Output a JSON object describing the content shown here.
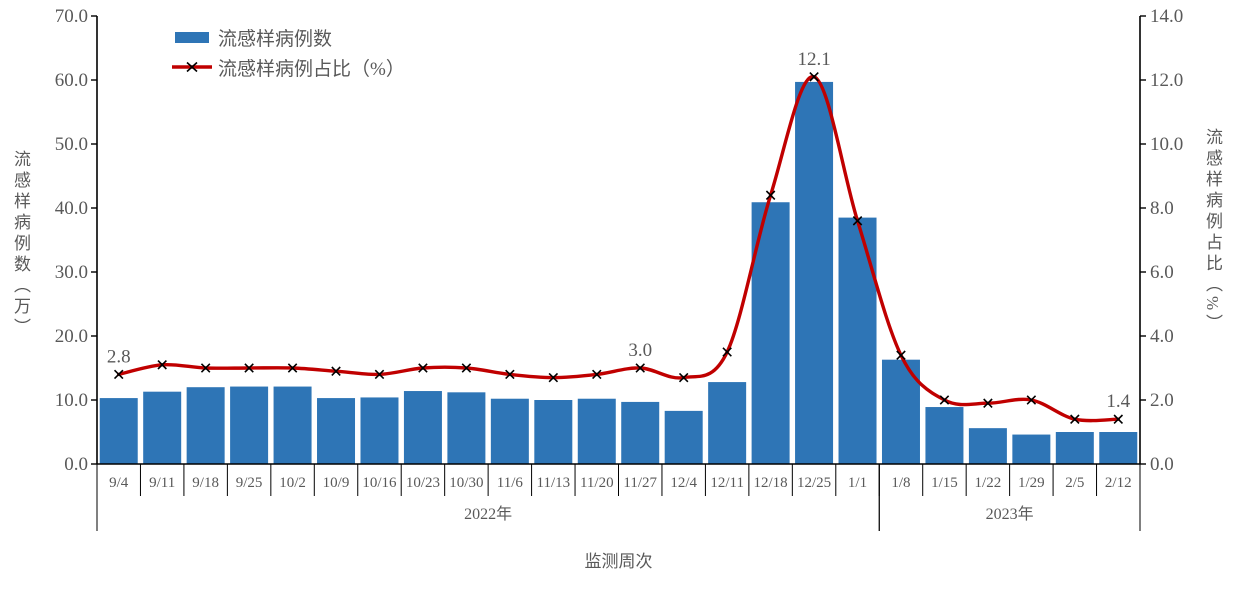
{
  "chart_data": {
    "type": "bar",
    "combo": "bar+line dual axis",
    "title": "",
    "xlabel": "监测周次",
    "ylabel_left": "流感样病例数（万）",
    "ylabel_right": "流感样病例占比（%）",
    "ylim_left": [
      0,
      70
    ],
    "ylim_right": [
      0,
      14
    ],
    "yticks_left": [
      "0.0",
      "10.0",
      "20.0",
      "30.0",
      "40.0",
      "50.0",
      "60.0",
      "70.0"
    ],
    "yticks_right": [
      "0.0",
      "2.0",
      "4.0",
      "6.0",
      "8.0",
      "10.0",
      "12.0",
      "14.0"
    ],
    "categories": [
      "9/4",
      "9/11",
      "9/18",
      "9/25",
      "10/2",
      "10/9",
      "10/16",
      "10/23",
      "10/30",
      "11/6",
      "11/13",
      "11/20",
      "11/27",
      "12/4",
      "12/11",
      "12/18",
      "12/25",
      "1/1",
      "1/8",
      "1/15",
      "1/22",
      "1/29",
      "2/5",
      "2/12"
    ],
    "series": [
      {
        "name": "流感样病例数",
        "type": "bar",
        "axis": "left",
        "values": [
          10.3,
          11.3,
          12.0,
          12.1,
          12.1,
          10.3,
          10.4,
          11.4,
          11.2,
          10.2,
          10.0,
          10.2,
          9.7,
          8.3,
          12.8,
          40.9,
          59.7,
          38.5,
          16.3,
          8.9,
          5.6,
          4.6,
          5.0,
          5.0
        ]
      },
      {
        "name": "流感样病例占比（%）",
        "type": "line",
        "axis": "right",
        "values": [
          2.8,
          3.1,
          3.0,
          3.0,
          3.0,
          2.9,
          2.8,
          3.0,
          3.0,
          2.8,
          2.7,
          2.8,
          3.0,
          2.7,
          3.5,
          8.4,
          12.1,
          7.6,
          3.4,
          2.0,
          1.9,
          2.0,
          1.4,
          1.4
        ]
      }
    ],
    "year_groups": [
      {
        "label": "2022年",
        "from": 0,
        "to": 17
      },
      {
        "label": "2023年",
        "from": 18,
        "to": 23
      }
    ],
    "annotations": [
      {
        "index": 0,
        "text": "2.8"
      },
      {
        "index": 12,
        "text": "3.0"
      },
      {
        "index": 16,
        "text": "12.1"
      },
      {
        "index": 23,
        "text": "1.4"
      }
    ],
    "legend": {
      "bar_label": "流感样病例数",
      "line_label": "流感样病例占比（%）",
      "position": "top-left inside"
    },
    "grid": "off",
    "colors": {
      "bar": "#2E75B6",
      "line": "#C00000",
      "marker": "#000000",
      "text": "#595959",
      "axis": "#000000"
    }
  }
}
